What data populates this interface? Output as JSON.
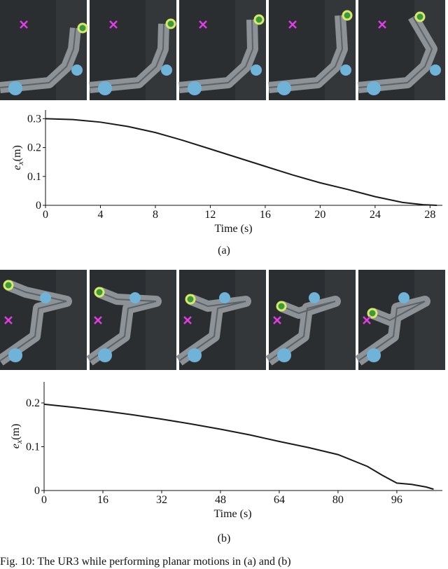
{
  "figure": {
    "charts": [
      {
        "chart_data": {
          "type": "line",
          "panel_label": "(a)",
          "x_label": "Time (s)",
          "y_label_symbol": "e",
          "y_label_subscript": "x",
          "y_label_unit": "(m)",
          "x": [
            0,
            2,
            4,
            6,
            8,
            10,
            12,
            14,
            16,
            18,
            20,
            22,
            24,
            26,
            27.5,
            28.5
          ],
          "values": [
            0.3,
            0.297,
            0.288,
            0.273,
            0.252,
            0.225,
            0.195,
            0.165,
            0.135,
            0.105,
            0.078,
            0.055,
            0.03,
            0.01,
            0.002,
            0
          ],
          "color": "#1a1a1a",
          "xlim": [
            0,
            28.9
          ],
          "xticks": [
            0,
            4,
            8,
            12,
            16,
            20,
            24,
            28
          ],
          "ylim": [
            0,
            0.33
          ],
          "yticks": [
            0,
            0.1,
            0.2,
            0.3
          ]
        }
      },
      {
        "chart_data": {
          "type": "line",
          "panel_label": "(b)",
          "x_label": "Time (s)",
          "y_label_symbol": "e",
          "y_label_subscript": "x",
          "y_label_unit": "(m)",
          "x": [
            0,
            8,
            16,
            24,
            32,
            40,
            48,
            56,
            64,
            72,
            80,
            88,
            92,
            96,
            100,
            104,
            106
          ],
          "values": [
            0.197,
            0.19,
            0.182,
            0.173,
            0.163,
            0.152,
            0.14,
            0.127,
            0.112,
            0.098,
            0.082,
            0.055,
            0.035,
            0.017,
            0.014,
            0.008,
            0.003
          ],
          "color": "#1a1a1a",
          "xlim": [
            0,
            108.4
          ],
          "xticks": [
            0,
            16,
            32,
            48,
            64,
            80,
            96
          ],
          "ylim": [
            0,
            0.248
          ],
          "yticks": [
            0,
            0.1,
            0.2
          ]
        }
      }
    ],
    "caption": "Fig. 10: The UR3 while performing planar motions in (a) and (b)"
  }
}
